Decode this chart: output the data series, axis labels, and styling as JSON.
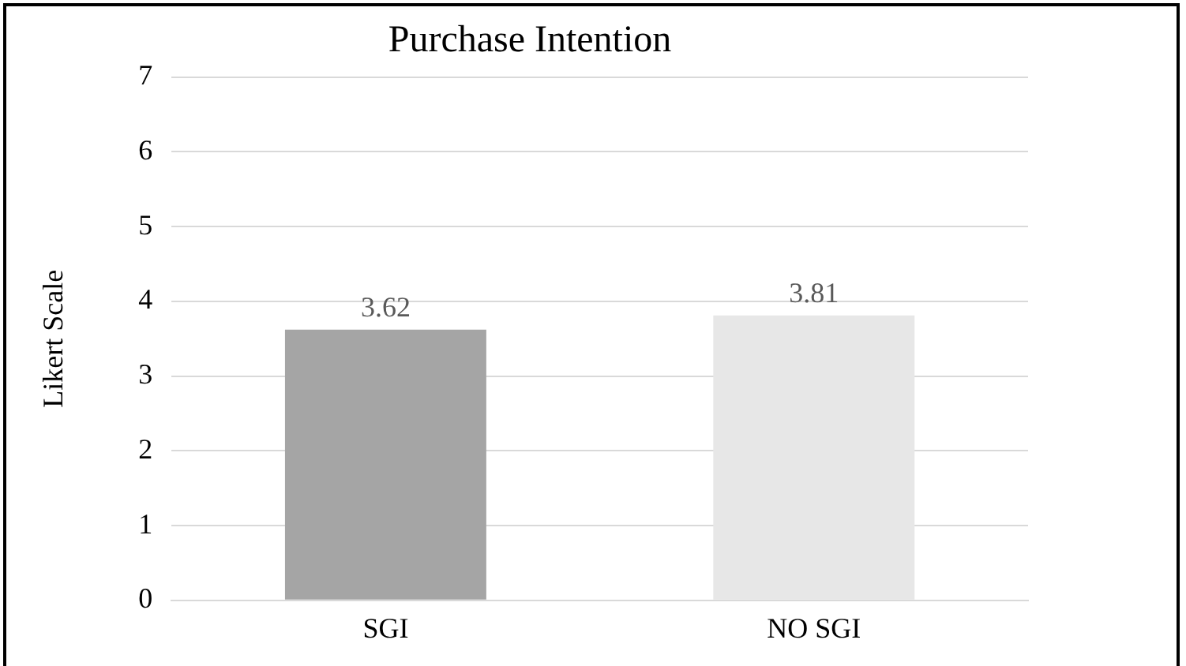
{
  "chart_data": {
    "type": "bar",
    "title": "Purchase Intention",
    "ylabel": "Likert Scale",
    "categories": [
      "SGI",
      "NO SGI"
    ],
    "values": [
      3.62,
      3.81
    ],
    "colors": [
      "#a5a5a5",
      "#e7e7e7"
    ],
    "ylim": [
      0,
      7
    ],
    "yticks": [
      0,
      1,
      2,
      3,
      4,
      5,
      6,
      7
    ],
    "grid": "y",
    "data_labels": true
  }
}
